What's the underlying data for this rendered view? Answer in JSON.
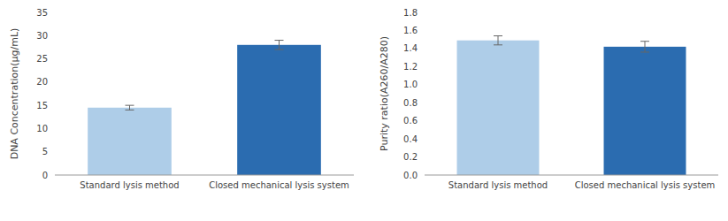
{
  "chart_data": [
    {
      "type": "bar",
      "categories": [
        "Standard lysis method",
        "Closed mechanical lysis system"
      ],
      "values": [
        14.5,
        28.0
      ],
      "errors": [
        0.5,
        1.0
      ],
      "colors": [
        "#aecde8",
        "#2b6cb0"
      ],
      "ylabel": "DNA Concentration(µg/mL)",
      "ylim": [
        0,
        35
      ],
      "yticks": [
        0,
        5,
        10,
        15,
        20,
        25,
        30,
        35
      ],
      "grid": false
    },
    {
      "type": "bar",
      "categories": [
        "Standard lysis method",
        "Closed mechanical lysis system"
      ],
      "values": [
        1.49,
        1.42
      ],
      "errors": [
        0.05,
        0.06
      ],
      "colors": [
        "#aecde8",
        "#2b6cb0"
      ],
      "ylabel": "Purity ratio(A260/A280)",
      "ylim": [
        0,
        1.8
      ],
      "yticks": [
        {
          "value": 0,
          "label": "0.0"
        },
        0.2,
        0.4,
        0.6,
        0.8,
        {
          "value": 1.0,
          "label": "1.0"
        },
        1.2,
        1.4,
        1.6,
        1.8
      ],
      "grid": false
    }
  ]
}
